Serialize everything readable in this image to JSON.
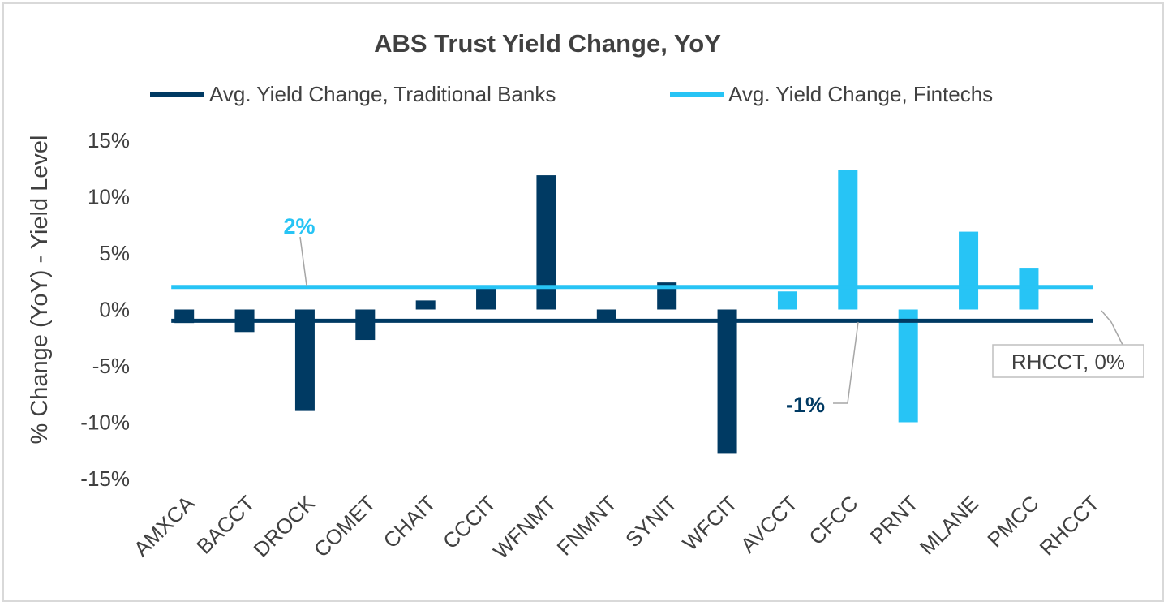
{
  "chart_data": {
    "type": "bar",
    "title": "ABS Trust Yield Change, YoY",
    "ylabel": "% Change (YoY) - Yield Level",
    "xlabel": "",
    "ylim": [
      -15,
      15
    ],
    "yticks": [
      15,
      10,
      5,
      0,
      -5,
      -10,
      -15
    ],
    "ytick_labels": [
      "15%",
      "10%",
      "5%",
      "0%",
      "-5%",
      "-10%",
      "-15%"
    ],
    "grid": false,
    "legend_position": "top",
    "categories": [
      "AMXCA",
      "BACCT",
      "DROCK",
      "COMET",
      "CHAIT",
      "CCCIT",
      "WFNMT",
      "FNMNT",
      "SYNIT",
      "WFCIT",
      "AVCCT",
      "CFCC",
      "PRNT",
      "MLANE",
      "PMCC",
      "RHCCT"
    ],
    "values": [
      -1.2,
      -2.0,
      -9.0,
      -2.7,
      0.8,
      2.0,
      11.9,
      -1.0,
      2.4,
      -12.8,
      1.6,
      12.4,
      -10.0,
      6.9,
      3.7,
      0.0
    ],
    "groups": [
      "traditional",
      "traditional",
      "traditional",
      "traditional",
      "traditional",
      "traditional",
      "traditional",
      "traditional",
      "traditional",
      "traditional",
      "fintech",
      "fintech",
      "fintech",
      "fintech",
      "fintech",
      "fintech"
    ],
    "reference_lines": [
      {
        "name": "Avg. Yield Change, Traditional Banks",
        "value": -1.0,
        "label": "-1%",
        "color": "#003a63"
      },
      {
        "name": "Avg. Yield Change, Fintechs",
        "value": 2.0,
        "label": "2%",
        "color": "#27c4f5"
      }
    ],
    "annotation": {
      "category": "RHCCT",
      "text": "RHCCT, 0%"
    },
    "colors": {
      "traditional": "#003a63",
      "fintech": "#27c4f5",
      "text": "#404040",
      "leader": "#a6a6a6",
      "frame": "#d9d9d9"
    }
  }
}
